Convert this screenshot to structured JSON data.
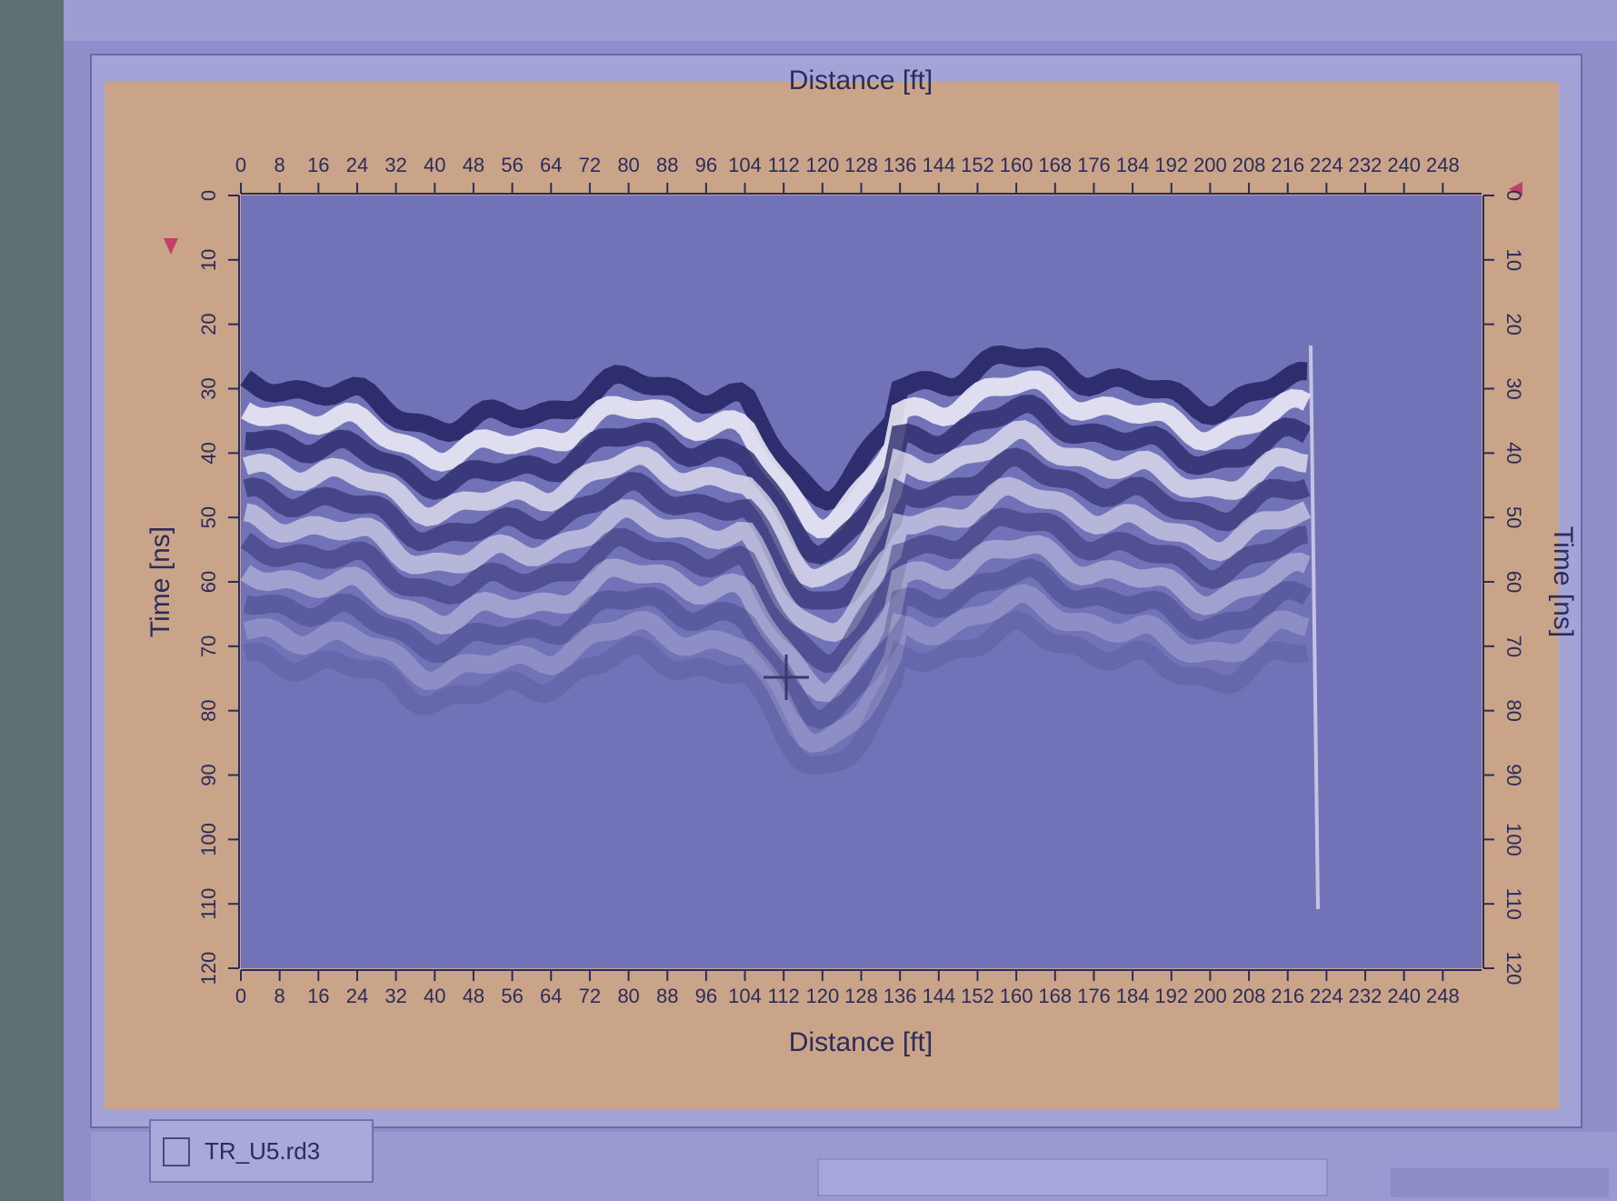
{
  "window": {
    "tab_label": "TR_U5.rd3"
  },
  "plot": {
    "x_label": "Distance [ft]",
    "y_label": "Time [ns]",
    "xlim": [
      0,
      256
    ],
    "xticks": [
      0,
      8,
      16,
      24,
      32,
      40,
      48,
      56,
      64,
      72,
      80,
      88,
      96,
      104,
      112,
      120,
      128,
      136,
      144,
      152,
      160,
      168,
      176,
      184,
      192,
      200,
      208,
      216,
      224,
      232,
      240,
      248
    ],
    "ylim": [
      0,
      120
    ],
    "yticks": [
      0,
      10,
      20,
      30,
      40,
      50,
      60,
      70,
      80,
      90,
      100,
      110,
      120
    ]
  }
}
